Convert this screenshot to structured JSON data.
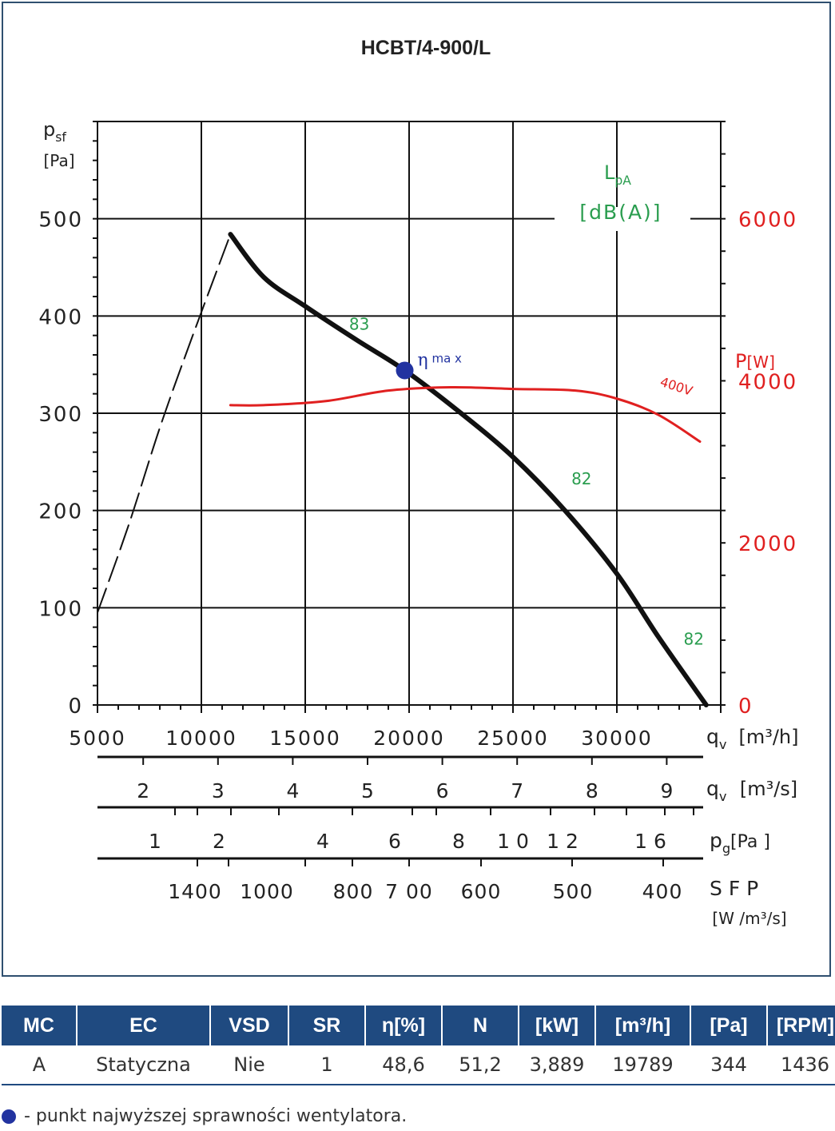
{
  "chart_data": {
    "type": "line",
    "title": "HCBT/4-900/L",
    "y_left": {
      "label": "p",
      "sub": "sf",
      "unit": "[Pa]",
      "ticks": [
        "0",
        "100",
        "200",
        "300",
        "400",
        "500"
      ],
      "range": [
        0,
        600
      ]
    },
    "y_right": {
      "label": "P",
      "unit": "[W]",
      "ticks": [
        "0",
        "2000",
        "4000",
        "6000"
      ],
      "range": [
        0,
        7200
      ]
    },
    "lpa": {
      "label": "L",
      "sub": "pA",
      "unit": "[dB(A)]"
    },
    "x_axes": [
      {
        "label": "q",
        "sub": "v",
        "unit": "[m³/h]",
        "ticks": [
          {
            "v": 5000,
            "t": "5000"
          },
          {
            "v": 10000,
            "t": "10000"
          },
          {
            "v": 15000,
            "t": "15000"
          },
          {
            "v": 20000,
            "t": "20000"
          },
          {
            "v": 25000,
            "t": "25000"
          },
          {
            "v": 30000,
            "t": "30000"
          }
        ]
      },
      {
        "label": "q",
        "sub": "v",
        "unit": "[m³/s]",
        "ticks": [
          {
            "v": 2,
            "t": "2"
          },
          {
            "v": 3,
            "t": "3"
          },
          {
            "v": 4,
            "t": "4"
          },
          {
            "v": 5,
            "t": "5"
          },
          {
            "v": 6,
            "t": "6"
          },
          {
            "v": 7,
            "t": "7"
          },
          {
            "v": 8,
            "t": "8"
          },
          {
            "v": 9,
            "t": "9"
          }
        ]
      },
      {
        "label": "p",
        "sub": "g",
        "unit": "[Pa ]",
        "ticks": [
          {
            "v": 1,
            "t": "1"
          },
          {
            "v": 2,
            "t": "2"
          },
          {
            "v": 4,
            "t": "4"
          },
          {
            "v": 6,
            "t": "6"
          },
          {
            "v": 8,
            "t": "8"
          },
          {
            "v": 10,
            "t": "1 0"
          },
          {
            "v": 12,
            "t": "1 2"
          },
          {
            "v": 16,
            "t": "1 6"
          }
        ]
      },
      {
        "label": "S F P",
        "unit": "[W /m³/s]",
        "ticks": [
          {
            "v": 1400,
            "t": "1400"
          },
          {
            "v": 1000,
            "t": "1000"
          },
          {
            "v": 800,
            "t": "800"
          },
          {
            "v": 700,
            "t": "7 00"
          },
          {
            "v": 600,
            "t": "600"
          },
          {
            "v": 500,
            "t": "500"
          },
          {
            "v": 400,
            "t": "400"
          }
        ]
      }
    ],
    "series": [
      {
        "kind": "pressure_stall",
        "color": "#111111",
        "dash": true,
        "x": [
          5000,
          6500,
          8000,
          9500,
          11400
        ],
        "y": [
          95,
          185,
          285,
          375,
          484
        ]
      },
      {
        "kind": "pressure",
        "color": "#111111",
        "x": [
          11400,
          13000,
          15000,
          17500,
          19800,
          22500,
          25000,
          27500,
          30000,
          32000,
          34300
        ],
        "y": [
          484,
          440,
          410,
          375,
          344,
          300,
          255,
          200,
          135,
          70,
          0
        ]
      },
      {
        "kind": "power",
        "name": "400V",
        "color": "#e02020",
        "x": [
          11400,
          13000,
          16000,
          19000,
          22000,
          25000,
          28000,
          30000,
          32000,
          34000
        ],
        "y": [
          3700,
          3700,
          3750,
          3880,
          3920,
          3900,
          3880,
          3780,
          3580,
          3250
        ]
      }
    ],
    "annotations": [
      {
        "text": "83",
        "x": 17600,
        "y": 386,
        "color": "#2a9d4f"
      },
      {
        "text": "82",
        "x": 28300,
        "y": 227,
        "color": "#2a9d4f"
      },
      {
        "text": "82",
        "x": 33700,
        "y": 62,
        "color": "#2a9d4f"
      },
      {
        "text": "400V",
        "x": 32800,
        "y": 3880,
        "color": "#e02020",
        "axis": "right"
      }
    ],
    "eta_max": {
      "label": "η",
      "sub": "ma x",
      "x": 19789,
      "y": 344,
      "color": "#2233a0"
    },
    "grid": true
  },
  "table": {
    "headers": [
      "MC",
      "EC",
      "VSD",
      "SR",
      "η[%]",
      "N",
      "[kW]",
      "[m³/h]",
      "[Pa]",
      "[RPM]"
    ],
    "rows": [
      [
        "A",
        "Statyczna",
        "Nie",
        "1",
        "48,6",
        "51,2",
        "3,889",
        "19789",
        "344",
        "1436"
      ]
    ]
  },
  "legend": {
    "text": "- punkt najwyższej sprawności wentylatora."
  }
}
